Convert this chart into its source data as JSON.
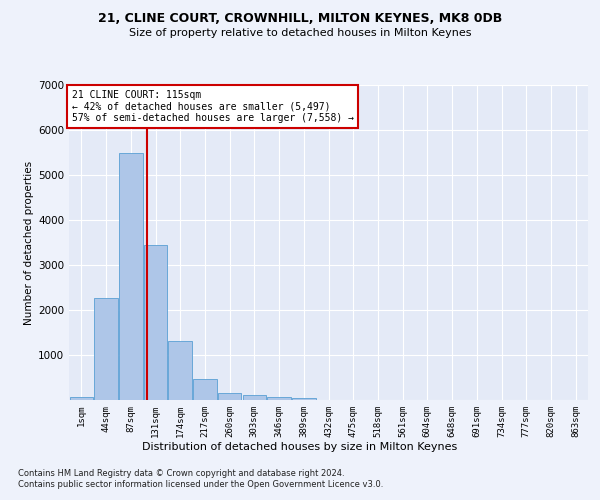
{
  "title1": "21, CLINE COURT, CROWNHILL, MILTON KEYNES, MK8 0DB",
  "title2": "Size of property relative to detached houses in Milton Keynes",
  "xlabel": "Distribution of detached houses by size in Milton Keynes",
  "ylabel": "Number of detached properties",
  "footnote1": "Contains HM Land Registry data © Crown copyright and database right 2024.",
  "footnote2": "Contains public sector information licensed under the Open Government Licence v3.0.",
  "bar_labels": [
    "1sqm",
    "44sqm",
    "87sqm",
    "131sqm",
    "174sqm",
    "217sqm",
    "260sqm",
    "303sqm",
    "346sqm",
    "389sqm",
    "432sqm",
    "475sqm",
    "518sqm",
    "561sqm",
    "604sqm",
    "648sqm",
    "691sqm",
    "734sqm",
    "777sqm",
    "820sqm",
    "863sqm"
  ],
  "bar_values": [
    75,
    2270,
    5480,
    3450,
    1310,
    470,
    165,
    105,
    70,
    50,
    0,
    0,
    0,
    0,
    0,
    0,
    0,
    0,
    0,
    0,
    0
  ],
  "bar_color": "#aec6e8",
  "bar_edge_color": "#5a9fd4",
  "ylim": [
    0,
    7000
  ],
  "yticks": [
    0,
    1000,
    2000,
    3000,
    4000,
    5000,
    6000,
    7000
  ],
  "property_label": "21 CLINE COURT: 115sqm",
  "annotation_line1": "← 42% of detached houses are smaller (5,497)",
  "annotation_line2": "57% of semi-detached houses are larger (7,558) →",
  "vline_color": "#cc0000",
  "annotation_box_color": "#cc0000",
  "background_color": "#eef2fb",
  "plot_bg_color": "#e4eaf7",
  "grid_color": "#ffffff",
  "vline_x_index": 2.65
}
